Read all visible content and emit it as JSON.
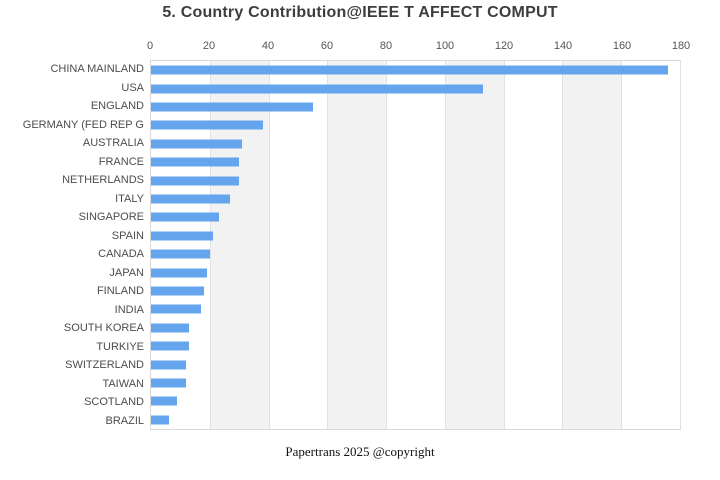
{
  "title": "5. Country Contribution@IEEE T AFFECT COMPUT",
  "footer": "Papertrans 2025 @copyright",
  "chart_data": {
    "type": "bar",
    "orientation": "horizontal",
    "title": "5. Country Contribution@IEEE T AFFECT COMPUT",
    "categories": [
      "CHINA MAINLAND",
      "USA",
      "ENGLAND",
      "GERMANY (FED REP G",
      "AUSTRALIA",
      "FRANCE",
      "NETHERLANDS",
      "ITALY",
      "SINGAPORE",
      "SPAIN",
      "CANADA",
      "JAPAN",
      "FINLAND",
      "INDIA",
      "SOUTH KOREA",
      "TURKIYE",
      "SWITZERLAND",
      "TAIWAN",
      "SCOTLAND",
      "BRAZIL"
    ],
    "values": [
      176,
      113,
      55,
      38,
      31,
      30,
      30,
      27,
      23,
      21,
      20,
      19,
      18,
      17,
      13,
      13,
      12,
      12,
      9,
      6
    ],
    "xlabel": "",
    "ylabel": "",
    "xlim": [
      0,
      180
    ],
    "x_ticks": [
      0,
      20,
      40,
      60,
      80,
      100,
      120,
      140,
      160,
      180
    ],
    "axis_position": "top",
    "grid": true,
    "split_area_alternating": true,
    "legend": "none",
    "bar_color": "#64a5ed",
    "band_color": "#f2f2f2",
    "gridline_color": "#e2e2e2",
    "axis_text_color": "#555555",
    "label_text_color": "#4d4d4d",
    "title_color": "#3d3d3d"
  }
}
